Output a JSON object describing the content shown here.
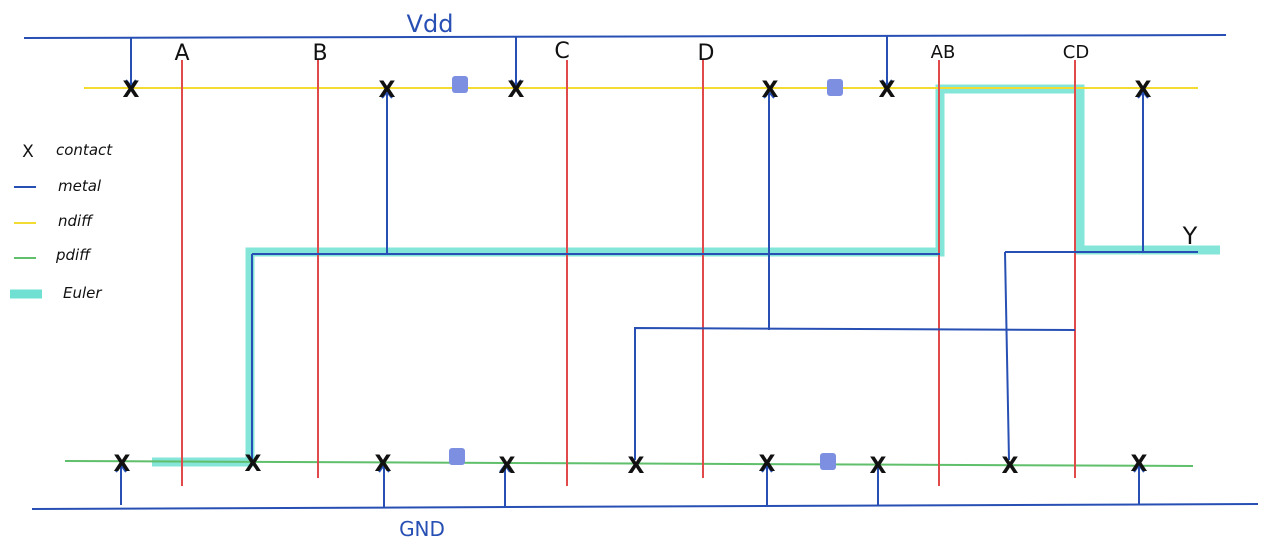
{
  "rails": {
    "vdd_label": "Vdd",
    "gnd_label": "GND",
    "output_label": "Y"
  },
  "columns": [
    {
      "label": "A"
    },
    {
      "label": "B"
    },
    {
      "label": "C"
    },
    {
      "label": "D"
    },
    {
      "label": "AB"
    },
    {
      "label": "CD"
    }
  ],
  "legend": {
    "contact_symbol": "X",
    "items": [
      {
        "name": "contact",
        "label": "contact",
        "color": "#111111"
      },
      {
        "name": "metal",
        "label": "metal",
        "color": "#2850b4"
      },
      {
        "name": "ndiff",
        "label": "ndiff",
        "color": "#f2dc32"
      },
      {
        "name": "pdiff",
        "label": "pdiff",
        "color": "#5fbf6a"
      },
      {
        "name": "euler",
        "label": "Euler",
        "color": "#6fe0d2"
      }
    ]
  },
  "colors": {
    "metal": "#2850b4",
    "poly": "#e04a4a",
    "ndiff": "#f2dc32",
    "pdiff": "#5fbf6a",
    "euler": "#6fe0d2",
    "break_mark": "#7d8fe0"
  }
}
